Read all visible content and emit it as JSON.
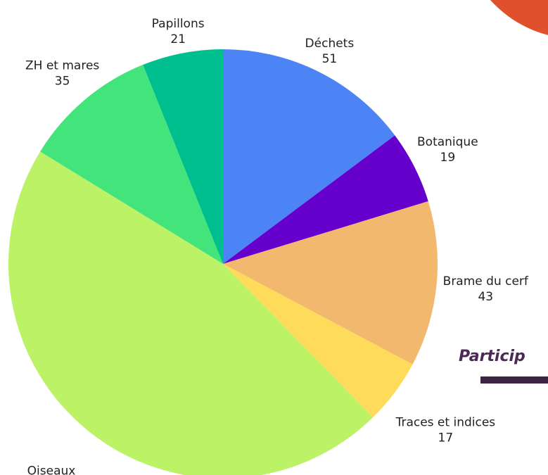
{
  "chart_data": {
    "type": "pie",
    "categories": [
      "Déchets",
      "Botanique",
      "Brame du cerf",
      "Traces et indices",
      "Oiseaux",
      "ZH et mares",
      "Papillons"
    ],
    "values": [
      51,
      19,
      43,
      17,
      159,
      35,
      21
    ],
    "colors": [
      "#4d84f5",
      "#6600cc",
      "#f2b86e",
      "#fedb5a",
      "#bcf266",
      "#44e47c",
      "#00bf8f"
    ]
  },
  "heading": "Particip"
}
